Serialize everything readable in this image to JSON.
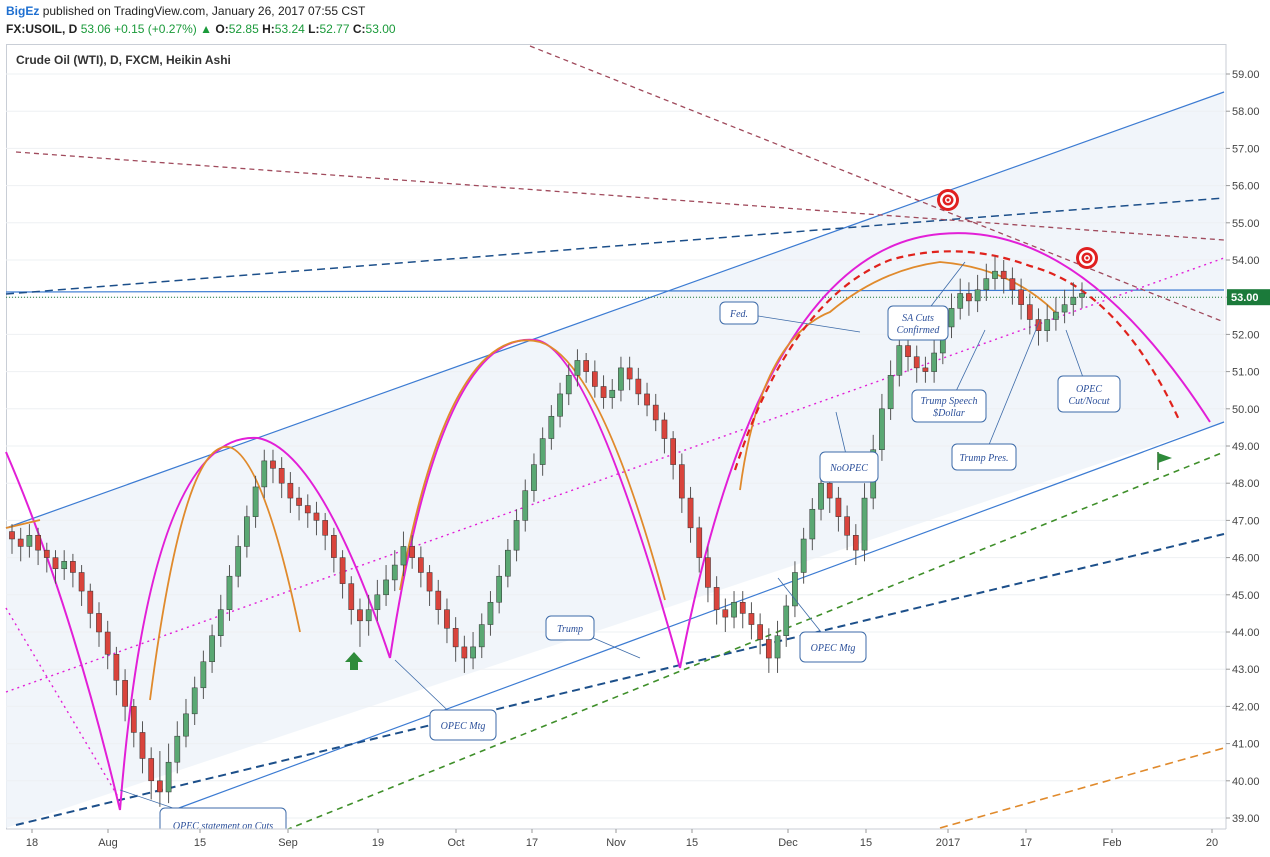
{
  "header": {
    "author": "BigEz",
    "published": "published on TradingView.com, January 26, 2017 07:55 CST",
    "symbol": "FX:USOIL, D",
    "last": "53.06",
    "change_arrow": "▲",
    "change": "+0.15 (+0.27%)",
    "o_label": "O:",
    "o_val": "52.85",
    "h_label": "H:",
    "h_val": "53.24",
    "l_label": "L:",
    "l_val": "52.77",
    "c_label": "C:",
    "c_val": "53.00"
  },
  "series_title": "Crude Oil (WTI), D, FXCM, Heikin Ashi",
  "chart_data": {
    "type": "candlestick",
    "title": "Crude Oil (WTI), D, FXCM, Heikin Ashi",
    "ylim": [
      38.8,
      59.4
    ],
    "y_ticks": [
      "59.00",
      "58.00",
      "57.00",
      "56.00",
      "55.00",
      "54.00",
      "53.00",
      "52.00",
      "51.00",
      "50.00",
      "49.00",
      "48.00",
      "47.00",
      "46.00",
      "45.00",
      "44.00",
      "43.00",
      "42.00",
      "41.00",
      "40.00",
      "39.00"
    ],
    "x_ticks": [
      "18",
      "Aug",
      "15",
      "Sep",
      "19",
      "Oct",
      "17",
      "Nov",
      "15",
      "Dec",
      "15",
      "2017",
      "17",
      "Feb",
      "20"
    ],
    "last_price": "53.00",
    "annotations": [
      "OPEC statement on Cuts",
      "OPEC Mtg",
      "Trump",
      "OPEC Mtg",
      "NoOPEC",
      "Fed.",
      "SA Cuts Confirmed",
      "Trump Speech $Dollar",
      "Trump Pres.",
      "OPEC Cut/Nocut"
    ],
    "candles": [
      [
        46.7,
        46.5,
        46.9,
        46.1
      ],
      [
        46.5,
        46.3,
        46.8,
        45.9
      ],
      [
        46.3,
        46.6,
        46.9,
        46.0
      ],
      [
        46.6,
        46.2,
        46.8,
        45.8
      ],
      [
        46.2,
        46.0,
        46.4,
        45.6
      ],
      [
        46.0,
        45.7,
        46.2,
        45.3
      ],
      [
        45.7,
        45.9,
        46.2,
        45.4
      ],
      [
        45.9,
        45.6,
        46.1,
        45.2
      ],
      [
        45.6,
        45.1,
        45.8,
        44.7
      ],
      [
        45.1,
        44.5,
        45.3,
        44.1
      ],
      [
        44.5,
        44.0,
        44.8,
        43.6
      ],
      [
        44.0,
        43.4,
        44.3,
        43.0
      ],
      [
        43.4,
        42.7,
        43.6,
        42.3
      ],
      [
        42.7,
        42.0,
        43.0,
        41.6
      ],
      [
        42.0,
        41.3,
        42.2,
        40.9
      ],
      [
        41.3,
        40.6,
        41.6,
        40.2
      ],
      [
        40.6,
        40.0,
        40.9,
        39.5
      ],
      [
        40.0,
        39.7,
        40.8,
        39.3
      ],
      [
        39.7,
        40.5,
        41.0,
        39.4
      ],
      [
        40.5,
        41.2,
        41.6,
        40.2
      ],
      [
        41.2,
        41.8,
        42.2,
        40.9
      ],
      [
        41.8,
        42.5,
        42.8,
        41.5
      ],
      [
        42.5,
        43.2,
        43.5,
        42.2
      ],
      [
        43.2,
        43.9,
        44.2,
        42.9
      ],
      [
        43.9,
        44.6,
        45.0,
        43.6
      ],
      [
        44.6,
        45.5,
        45.8,
        44.3
      ],
      [
        45.5,
        46.3,
        46.6,
        45.2
      ],
      [
        46.3,
        47.1,
        47.4,
        46.0
      ],
      [
        47.1,
        47.9,
        48.2,
        46.8
      ],
      [
        47.9,
        48.6,
        48.9,
        47.6
      ],
      [
        48.6,
        48.4,
        48.9,
        48.0
      ],
      [
        48.4,
        48.0,
        48.7,
        47.6
      ],
      [
        48.0,
        47.6,
        48.3,
        47.2
      ],
      [
        47.6,
        47.4,
        47.9,
        47.0
      ],
      [
        47.4,
        47.2,
        47.7,
        46.8
      ],
      [
        47.2,
        47.0,
        47.5,
        46.6
      ],
      [
        47.0,
        46.6,
        47.2,
        46.2
      ],
      [
        46.6,
        46.0,
        46.8,
        45.6
      ],
      [
        46.0,
        45.3,
        46.2,
        44.9
      ],
      [
        45.3,
        44.6,
        45.5,
        44.2
      ],
      [
        44.6,
        44.3,
        44.9,
        43.6
      ],
      [
        44.3,
        44.6,
        45.0,
        43.9
      ],
      [
        44.6,
        45.0,
        45.4,
        44.3
      ],
      [
        45.0,
        45.4,
        45.8,
        44.7
      ],
      [
        45.4,
        45.8,
        46.2,
        45.1
      ],
      [
        45.8,
        46.3,
        46.7,
        45.5
      ],
      [
        46.3,
        46.0,
        46.6,
        45.7
      ],
      [
        46.0,
        45.6,
        46.3,
        45.2
      ],
      [
        45.6,
        45.1,
        45.8,
        44.7
      ],
      [
        45.1,
        44.6,
        45.4,
        44.2
      ],
      [
        44.6,
        44.1,
        44.9,
        43.7
      ],
      [
        44.1,
        43.6,
        44.4,
        43.2
      ],
      [
        43.6,
        43.3,
        43.9,
        42.9
      ],
      [
        43.3,
        43.6,
        44.0,
        43.0
      ],
      [
        43.6,
        44.2,
        44.5,
        43.3
      ],
      [
        44.2,
        44.8,
        45.1,
        43.9
      ],
      [
        44.8,
        45.5,
        45.8,
        44.5
      ],
      [
        45.5,
        46.2,
        46.5,
        45.2
      ],
      [
        46.2,
        47.0,
        47.3,
        45.9
      ],
      [
        47.0,
        47.8,
        48.1,
        46.7
      ],
      [
        47.8,
        48.5,
        48.8,
        47.5
      ],
      [
        48.5,
        49.2,
        49.5,
        48.2
      ],
      [
        49.2,
        49.8,
        50.1,
        48.9
      ],
      [
        49.8,
        50.4,
        50.7,
        49.5
      ],
      [
        50.4,
        50.9,
        51.2,
        50.1
      ],
      [
        50.9,
        51.3,
        51.6,
        50.6
      ],
      [
        51.3,
        51.0,
        51.5,
        50.7
      ],
      [
        51.0,
        50.6,
        51.3,
        50.3
      ],
      [
        50.6,
        50.3,
        50.9,
        50.0
      ],
      [
        50.3,
        50.5,
        50.8,
        50.0
      ],
      [
        50.5,
        51.1,
        51.4,
        50.2
      ],
      [
        51.1,
        50.8,
        51.4,
        50.5
      ],
      [
        50.8,
        50.4,
        51.1,
        50.1
      ],
      [
        50.4,
        50.1,
        50.7,
        49.8
      ],
      [
        50.1,
        49.7,
        50.4,
        49.4
      ],
      [
        49.7,
        49.2,
        49.9,
        48.8
      ],
      [
        49.2,
        48.5,
        49.4,
        48.1
      ],
      [
        48.5,
        47.6,
        48.8,
        47.2
      ],
      [
        47.6,
        46.8,
        47.9,
        46.4
      ],
      [
        46.8,
        46.0,
        47.1,
        45.6
      ],
      [
        46.0,
        45.2,
        46.3,
        44.8
      ],
      [
        45.2,
        44.6,
        45.5,
        44.2
      ],
      [
        44.6,
        44.4,
        44.9,
        44.0
      ],
      [
        44.4,
        44.8,
        45.1,
        44.1
      ],
      [
        44.8,
        44.5,
        45.1,
        44.1
      ],
      [
        44.5,
        44.2,
        44.8,
        43.8
      ],
      [
        44.2,
        43.8,
        44.5,
        43.4
      ],
      [
        43.8,
        43.3,
        44.1,
        42.9
      ],
      [
        43.3,
        43.9,
        44.3,
        42.9
      ],
      [
        43.9,
        44.7,
        45.0,
        43.6
      ],
      [
        44.7,
        45.6,
        45.9,
        44.4
      ],
      [
        45.6,
        46.5,
        46.8,
        45.3
      ],
      [
        46.5,
        47.3,
        47.6,
        46.2
      ],
      [
        47.3,
        48.0,
        48.3,
        47.0
      ],
      [
        48.0,
        47.6,
        48.3,
        47.2
      ],
      [
        47.6,
        47.1,
        47.9,
        46.7
      ],
      [
        47.1,
        46.6,
        47.4,
        46.2
      ],
      [
        46.6,
        46.2,
        46.9,
        45.8
      ],
      [
        46.2,
        47.6,
        48.0,
        45.9
      ],
      [
        47.6,
        48.9,
        49.3,
        47.3
      ],
      [
        48.9,
        50.0,
        50.4,
        48.6
      ],
      [
        50.0,
        50.9,
        51.3,
        49.7
      ],
      [
        50.9,
        51.7,
        52.1,
        50.6
      ],
      [
        51.7,
        51.4,
        52.0,
        51.0
      ],
      [
        51.4,
        51.1,
        51.7,
        50.7
      ],
      [
        51.1,
        51.0,
        51.4,
        50.7
      ],
      [
        51.0,
        51.5,
        51.9,
        50.7
      ],
      [
        51.5,
        52.2,
        52.6,
        51.2
      ],
      [
        52.2,
        52.7,
        53.1,
        51.9
      ],
      [
        52.7,
        53.1,
        53.5,
        52.4
      ],
      [
        53.1,
        52.9,
        53.4,
        52.5
      ],
      [
        52.9,
        53.2,
        53.6,
        52.6
      ],
      [
        53.2,
        53.5,
        53.9,
        52.9
      ],
      [
        53.5,
        53.7,
        54.1,
        53.2
      ],
      [
        53.7,
        53.5,
        54.0,
        53.1
      ],
      [
        53.5,
        53.2,
        53.8,
        52.8
      ],
      [
        53.2,
        52.8,
        53.5,
        52.4
      ],
      [
        52.8,
        52.4,
        53.1,
        52.0
      ],
      [
        52.4,
        52.1,
        52.7,
        51.7
      ],
      [
        52.1,
        52.4,
        52.8,
        51.8
      ],
      [
        52.4,
        52.6,
        53.0,
        52.1
      ],
      [
        52.6,
        52.8,
        53.2,
        52.3
      ],
      [
        52.8,
        53.0,
        53.4,
        52.5
      ],
      [
        53.0,
        53.1,
        53.4,
        52.7
      ]
    ]
  },
  "notes": {
    "opec_statement": "OPEC statement on Cuts",
    "opec_mtg1": "OPEC Mtg",
    "trump": "Trump",
    "opec_mtg2": "OPEC Mtg",
    "noopec": "NoOPEC",
    "fed": "Fed.",
    "sa_cuts_1": "SA Cuts",
    "sa_cuts_2": "Confirmed",
    "trump_speech_1": "Trump Speech",
    "trump_speech_2": "$Dollar",
    "trump_pres": "Trump Pres.",
    "opec_cut_1": "OPEC",
    "opec_cut_2": "Cut/Nocut"
  },
  "colors": {
    "up_candle": "#5aa873",
    "down_candle": "#d9443c",
    "channel_line": "#3c7bd2",
    "arc_magenta": "#e21fd7",
    "arc_orange": "#e08a2c",
    "red_dashed": "#e0221c",
    "navy_dashed": "#1c4f8a",
    "green_dashed": "#3f8f2a",
    "maroon_dashed": "#a04a5c"
  }
}
